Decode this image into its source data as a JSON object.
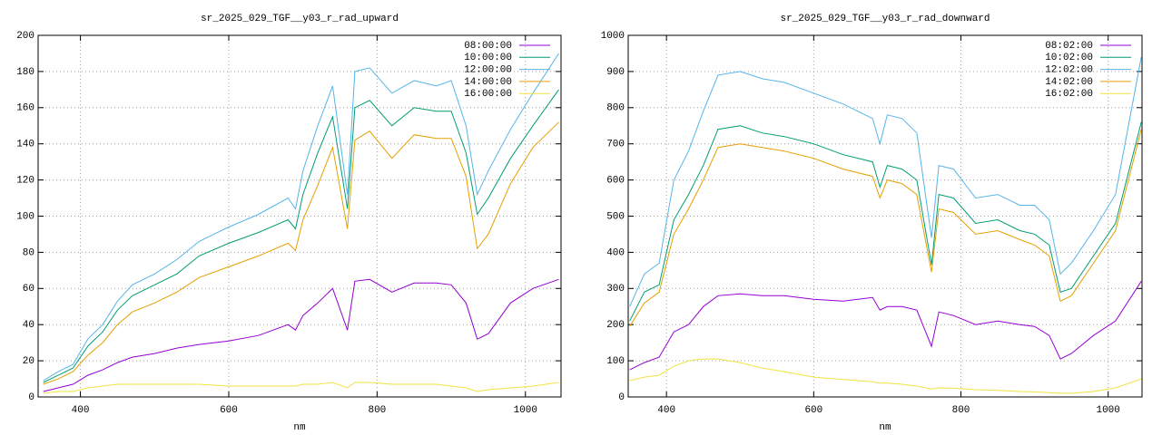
{
  "chart_data": [
    {
      "type": "line",
      "title": "sr_2025_029_TGF__y03_r_rad_upward",
      "x_label": "nm",
      "x": [
        350,
        370,
        390,
        410,
        430,
        450,
        470,
        500,
        530,
        560,
        600,
        640,
        680,
        690,
        700,
        720,
        740,
        760,
        770,
        790,
        820,
        850,
        880,
        900,
        920,
        935,
        950,
        980,
        1010,
        1045
      ],
      "xlim": [
        343,
        1048
      ],
      "xticks": [
        400,
        600,
        800,
        1000
      ],
      "ylim": [
        0,
        200
      ],
      "yticks": [
        0,
        20,
        40,
        60,
        80,
        100,
        120,
        140,
        160,
        180,
        200
      ],
      "grid": true,
      "legend": "top-right",
      "series": [
        {
          "name": "08:00:00",
          "color": "#9400d3",
          "values": [
            3,
            5,
            7,
            12,
            15,
            19,
            22,
            24,
            27,
            29,
            31,
            34,
            40,
            37,
            45,
            52,
            60,
            37,
            64,
            65,
            58,
            63,
            63,
            62,
            52,
            32,
            35,
            52,
            60,
            65
          ]
        },
        {
          "name": "10:00:00",
          "color": "#009e73",
          "values": [
            8,
            12,
            16,
            28,
            36,
            48,
            56,
            62,
            68,
            78,
            85,
            91,
            98,
            93,
            112,
            135,
            155,
            104,
            160,
            164,
            150,
            160,
            158,
            158,
            135,
            101,
            110,
            132,
            150,
            170
          ]
        },
        {
          "name": "12:00:00",
          "color": "#56b4e9",
          "values": [
            9,
            14,
            18,
            32,
            40,
            53,
            62,
            68,
            76,
            86,
            94,
            101,
            110,
            104,
            125,
            150,
            172,
            112,
            180,
            182,
            168,
            175,
            172,
            175,
            150,
            112,
            125,
            148,
            168,
            190
          ]
        },
        {
          "name": "14:00:00",
          "color": "#e69f00",
          "values": [
            7,
            10,
            14,
            23,
            30,
            40,
            47,
            52,
            58,
            66,
            72,
            78,
            85,
            81,
            98,
            117,
            138,
            93,
            142,
            147,
            132,
            145,
            143,
            143,
            122,
            82,
            90,
            118,
            138,
            152
          ]
        },
        {
          "name": "16:00:00",
          "color": "#f0e442",
          "values": [
            2,
            3,
            3,
            5,
            6,
            7,
            7,
            7,
            7,
            7,
            6,
            6,
            6,
            6,
            7,
            7,
            8,
            5,
            8,
            8,
            7,
            7,
            7,
            6,
            5,
            3,
            4,
            5,
            6,
            8
          ]
        }
      ]
    },
    {
      "type": "line",
      "title": "sr_2025_029_TGF__y03_r_rad_downward",
      "x_label": "nm",
      "x": [
        350,
        370,
        390,
        410,
        430,
        450,
        470,
        500,
        530,
        560,
        600,
        640,
        680,
        690,
        700,
        720,
        740,
        760,
        770,
        790,
        820,
        850,
        880,
        900,
        920,
        935,
        950,
        980,
        1010,
        1045
      ],
      "xlim": [
        348,
        1046
      ],
      "xticks": [
        400,
        600,
        800,
        1000
      ],
      "ylim": [
        0,
        1000
      ],
      "yticks": [
        0,
        100,
        200,
        300,
        400,
        500,
        600,
        700,
        800,
        900,
        1000
      ],
      "grid": true,
      "legend": "top-right",
      "series": [
        {
          "name": "08:02:00",
          "color": "#9400d3",
          "values": [
            75,
            95,
            110,
            180,
            200,
            250,
            280,
            285,
            280,
            280,
            270,
            265,
            275,
            240,
            250,
            250,
            240,
            140,
            235,
            225,
            200,
            210,
            200,
            195,
            170,
            105,
            120,
            170,
            210,
            320
          ]
        },
        {
          "name": "10:02:00",
          "color": "#009e73",
          "values": [
            210,
            290,
            310,
            490,
            560,
            640,
            740,
            750,
            730,
            720,
            700,
            670,
            650,
            580,
            640,
            630,
            600,
            365,
            560,
            550,
            480,
            490,
            460,
            450,
            420,
            290,
            300,
            390,
            480,
            760
          ]
        },
        {
          "name": "12:02:00",
          "color": "#56b4e9",
          "values": [
            250,
            340,
            370,
            600,
            680,
            790,
            890,
            900,
            880,
            870,
            840,
            810,
            770,
            700,
            780,
            770,
            730,
            440,
            640,
            630,
            550,
            560,
            530,
            530,
            490,
            340,
            370,
            460,
            560,
            940
          ]
        },
        {
          "name": "14:02:00",
          "color": "#e69f00",
          "values": [
            195,
            260,
            290,
            450,
            520,
            600,
            690,
            700,
            690,
            680,
            660,
            630,
            610,
            550,
            600,
            590,
            560,
            345,
            520,
            510,
            450,
            460,
            435,
            420,
            390,
            265,
            280,
            370,
            460,
            740
          ]
        },
        {
          "name": "16:02:00",
          "color": "#f0e442",
          "values": [
            45,
            55,
            60,
            85,
            100,
            105,
            105,
            95,
            80,
            70,
            55,
            48,
            42,
            38,
            38,
            35,
            30,
            22,
            25,
            24,
            20,
            18,
            15,
            14,
            12,
            10,
            10,
            15,
            25,
            50
          ]
        }
      ]
    }
  ]
}
